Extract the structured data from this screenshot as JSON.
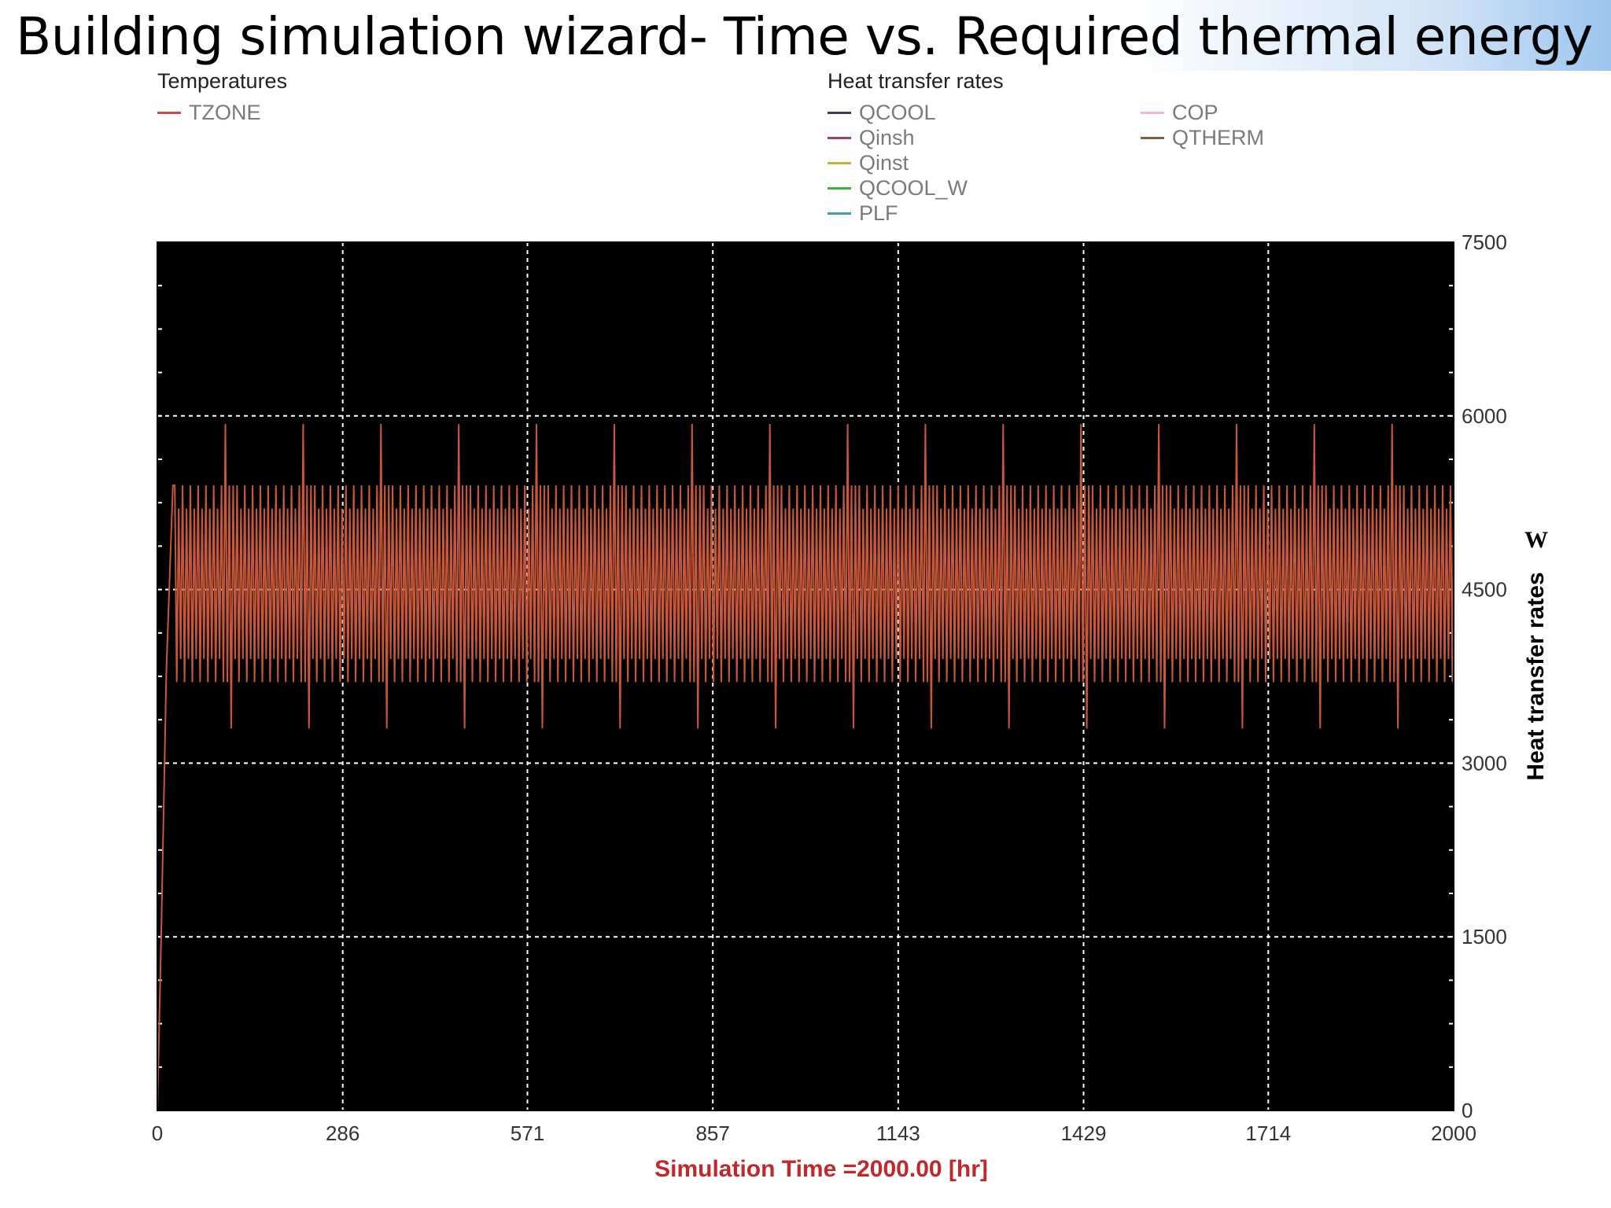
{
  "page": {
    "title": "Building simulation wizard- Time vs. Required thermal energy"
  },
  "legend": {
    "temperatures_heading": "Temperatures",
    "temperatures_items": [
      {
        "label": "TZONE",
        "color": "#c0504d"
      }
    ],
    "heat_heading": "Heat  transfer rates",
    "heat_items_col1": [
      {
        "label": "QCOOL",
        "color": "#3b3b5c"
      },
      {
        "label": "Qinsh",
        "color": "#a0406a"
      },
      {
        "label": "Qinst",
        "color": "#c8b040"
      },
      {
        "label": "QCOOL_W",
        "color": "#40b040"
      },
      {
        "label": "PLF",
        "color": "#40a0b0"
      }
    ],
    "heat_items_col2": [
      {
        "label": "COP",
        "color": "#f0b8c0"
      },
      {
        "label": "QTHERM",
        "color": "#806040"
      }
    ]
  },
  "chart_data": {
    "type": "line",
    "background": "#000000",
    "line_color": "#c8583a",
    "grid": true,
    "x_ticks": [
      "0",
      "286",
      "571",
      "857",
      "1143",
      "1429",
      "1714",
      "2000"
    ],
    "y_ticks": [
      "0",
      "1500",
      "3000",
      "4500",
      "6000",
      "7500"
    ],
    "xlim": [
      0,
      2000
    ],
    "ylim": [
      0,
      7500
    ],
    "xlabel": "Simulation Time =2000.00 [hr]",
    "ylabel": "Heat  transfer rates",
    "yunit": "W",
    "series": [
      {
        "name": "QTHERM",
        "pattern": {
          "startup": [
            [
              0,
              0
            ],
            [
              6,
              1500
            ],
            [
              14,
              3800
            ],
            [
              24,
              5400
            ]
          ],
          "period_hr": 24,
          "weekly_period_hr": 120,
          "daily_high": 5400,
          "daily_low": 3700,
          "daily_mid_high": 5200,
          "daily_mid_low": 3900,
          "weekly_peak": 5930,
          "weekly_trough": 3300
        }
      }
    ]
  }
}
